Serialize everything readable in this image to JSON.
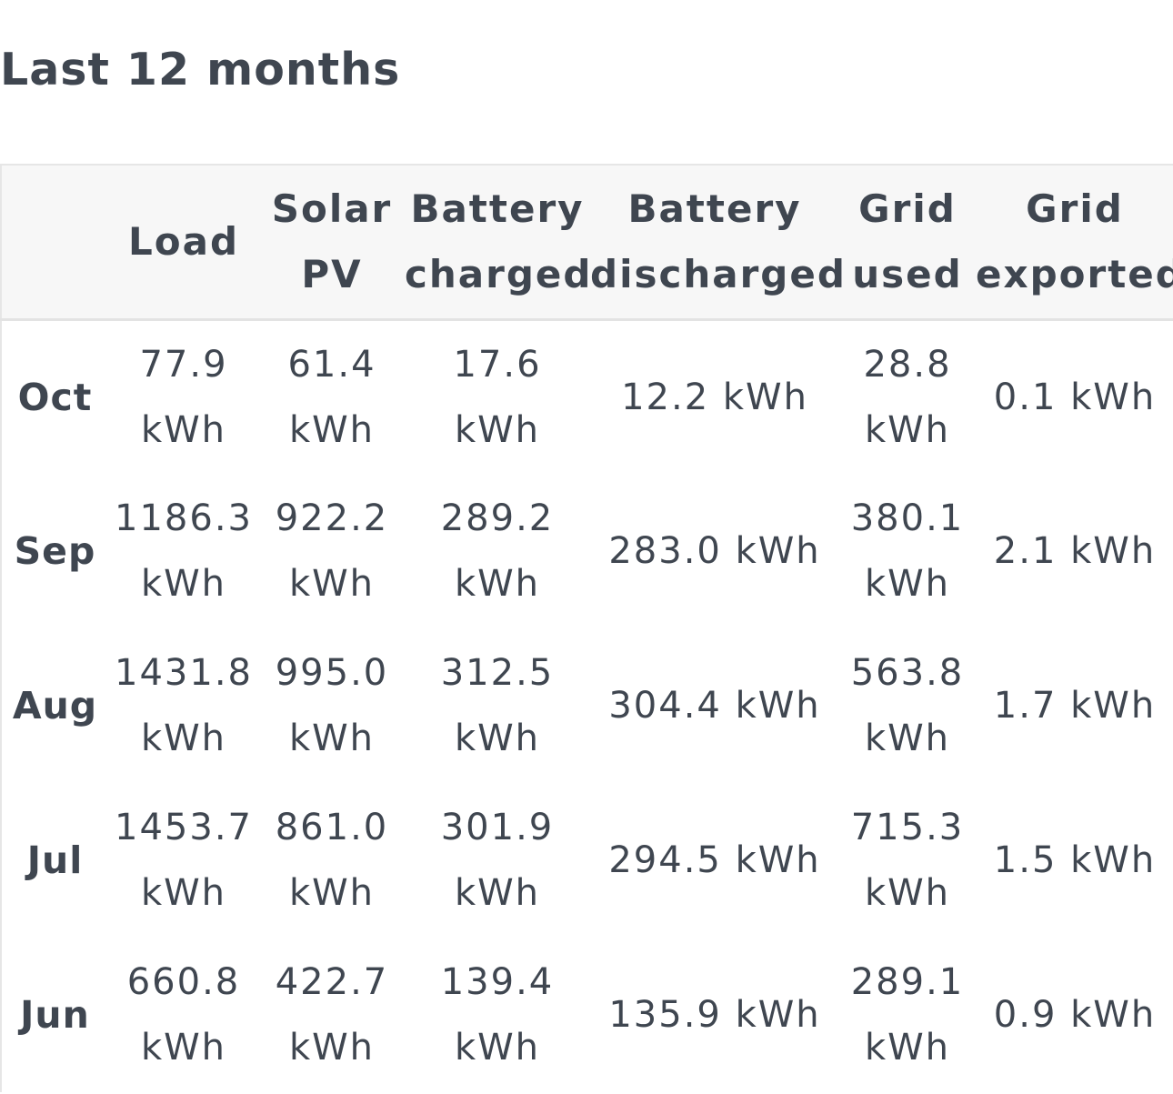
{
  "title": "Last 12 months",
  "columns": {
    "month": "",
    "load": [
      "Load"
    ],
    "solar": [
      "Solar",
      "PV"
    ],
    "battery_charged": [
      "Battery",
      "charged"
    ],
    "battery_discharged": [
      "Battery",
      "discharged"
    ],
    "grid_used": [
      "Grid",
      "used"
    ],
    "grid_exported": [
      "Grid",
      "exported"
    ]
  },
  "unit": "kWh",
  "rows": [
    {
      "month": "Oct",
      "load": "77.9",
      "solar": "61.4",
      "battery_charged": "17.6",
      "battery_discharged": "12.2 kWh",
      "grid_used": "28.8",
      "grid_exported": "0.1 kWh"
    },
    {
      "month": "Sep",
      "load": "1186.3",
      "solar": "922.2",
      "battery_charged": "289.2",
      "battery_discharged": "283.0 kWh",
      "grid_used": "380.1",
      "grid_exported": "2.1 kWh"
    },
    {
      "month": "Aug",
      "load": "1431.8",
      "solar": "995.0",
      "battery_charged": "312.5",
      "battery_discharged": "304.4 kWh",
      "grid_used": "563.8",
      "grid_exported": "1.7 kWh"
    },
    {
      "month": "Jul",
      "load": "1453.7",
      "solar": "861.0",
      "battery_charged": "301.9",
      "battery_discharged": "294.5 kWh",
      "grid_used": "715.3",
      "grid_exported": "1.5 kWh"
    },
    {
      "month": "Jun",
      "load": "660.8",
      "solar": "422.7",
      "battery_charged": "139.4",
      "battery_discharged": "135.9 kWh",
      "grid_used": "289.1",
      "grid_exported": "0.9 kWh"
    }
  ]
}
